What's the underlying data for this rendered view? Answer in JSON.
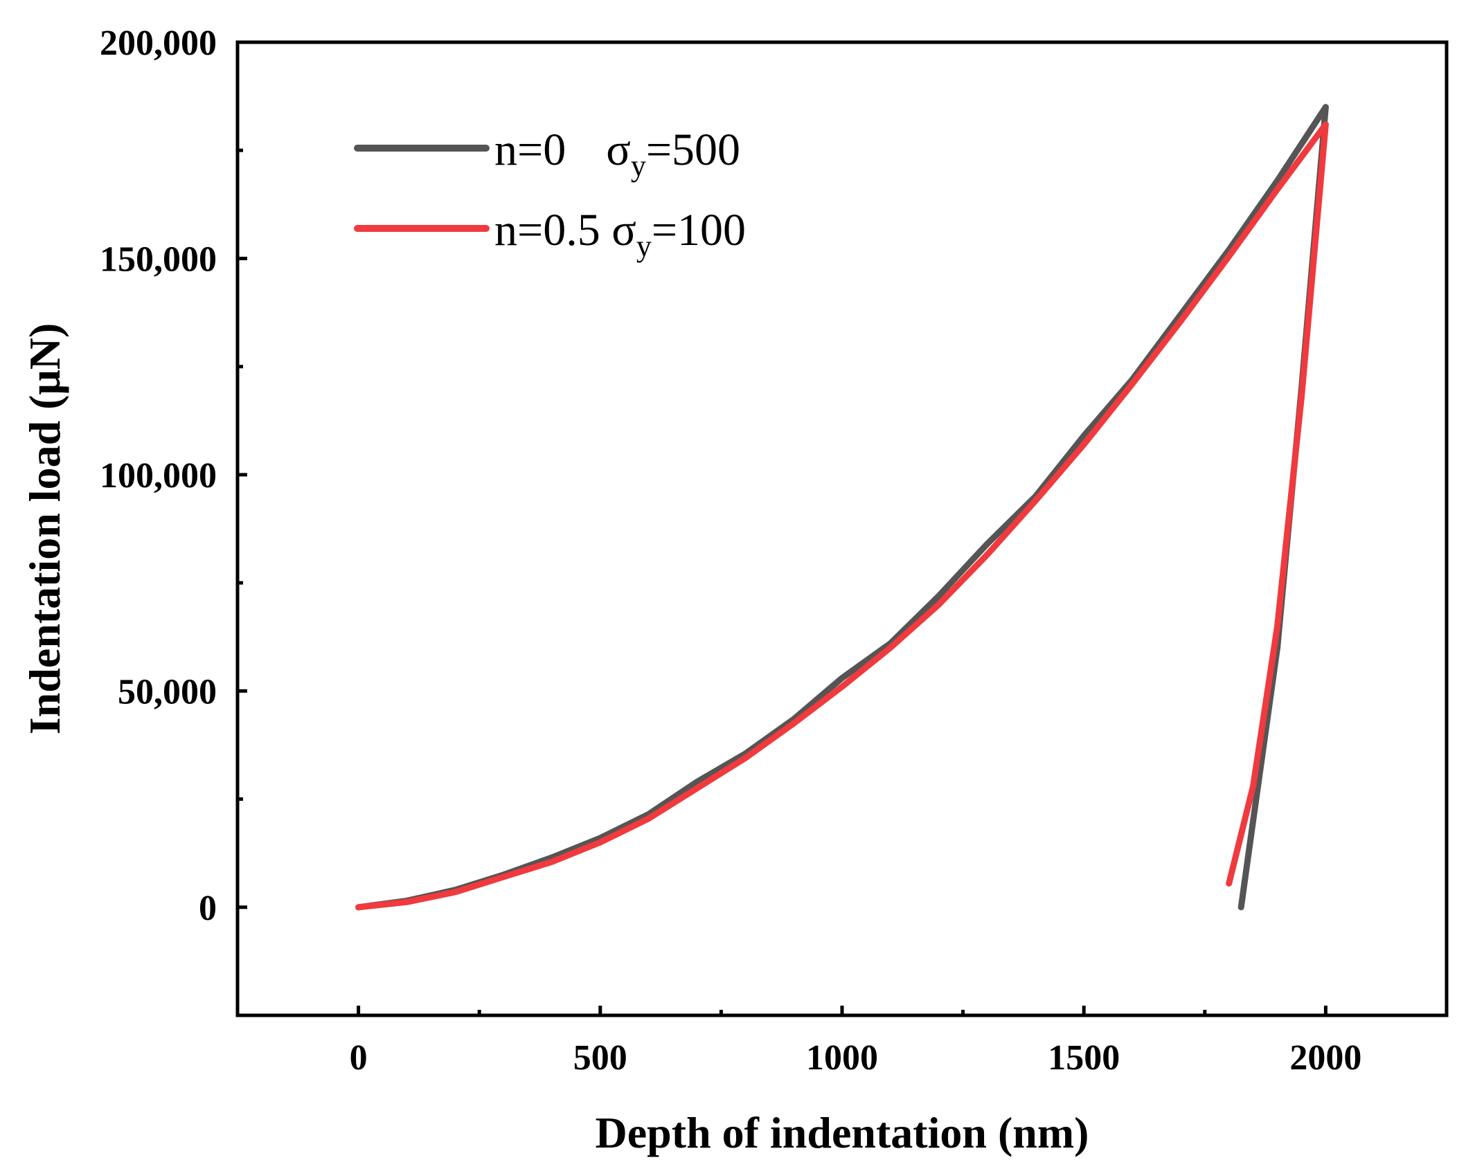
{
  "chart_data": {
    "type": "line",
    "title": "",
    "xlabel": "Depth of indentation (nm)",
    "ylabel": "Indentation load (μN)",
    "xlim": [
      -250,
      2250
    ],
    "ylim": [
      -25000,
      200000
    ],
    "x_ticks": [
      0,
      500,
      1000,
      1500,
      2000
    ],
    "x_tick_labels": [
      "0",
      "500",
      "1000",
      "1500",
      "2000"
    ],
    "y_ticks": [
      0,
      50000,
      100000,
      150000,
      200000
    ],
    "y_tick_labels": [
      "0",
      "50,000",
      "100,000",
      "150,000",
      "200,000"
    ],
    "grid": false,
    "legend_position": "top-left",
    "series": [
      {
        "name": "n=0 σy=500",
        "legend_main": "n=0",
        "legend_sigma": "σ",
        "legend_sub": "y",
        "legend_value": "=500",
        "color": "#555555",
        "x": [
          0,
          100,
          200,
          300,
          400,
          500,
          600,
          700,
          800,
          900,
          1000,
          1100,
          1200,
          1300,
          1400,
          1500,
          1600,
          1700,
          1800,
          1900,
          2000,
          1950,
          1900,
          1850,
          1825
        ],
        "y": [
          0,
          1500,
          4000,
          7500,
          11500,
          16000,
          21500,
          29000,
          35500,
          43500,
          53000,
          61000,
          72000,
          84000,
          95000,
          109000,
          122000,
          137000,
          152000,
          168000,
          185000,
          120000,
          60000,
          20000,
          0
        ]
      },
      {
        "name": "n=0.5 σy=100",
        "legend_main": "n=0.5 ",
        "legend_sigma": "σ",
        "legend_sub": "y",
        "legend_value": "=100",
        "color": "#f03a3e",
        "x": [
          0,
          100,
          200,
          300,
          400,
          500,
          600,
          700,
          800,
          900,
          1000,
          1100,
          1200,
          1300,
          1400,
          1500,
          1600,
          1700,
          1800,
          1900,
          2000,
          1950,
          1900,
          1850,
          1800
        ],
        "y": [
          0,
          1200,
          3500,
          7000,
          10500,
          15000,
          20500,
          27500,
          34500,
          42500,
          51000,
          60000,
          70000,
          81500,
          94000,
          107000,
          121000,
          135500,
          150500,
          166000,
          181000,
          118000,
          65000,
          28000,
          5500
        ]
      }
    ]
  }
}
